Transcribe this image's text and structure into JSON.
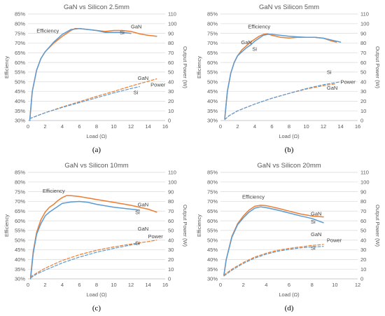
{
  "colors": {
    "gan": "#ED7D31",
    "si": "#5B9BD5",
    "grid": "#D9D9D9",
    "text": "#595959"
  },
  "chart_data": [
    {
      "type": "line",
      "panel_label": "(a)",
      "title": "GaN vs Silicon 2.5mm",
      "xlabel": "Load (Ω)",
      "ylabel": "Efficiency",
      "y2label": "Output Power (W)",
      "xlim": [
        0,
        16
      ],
      "x_ticks": [
        "0",
        "2",
        "4",
        "6",
        "8",
        "10",
        "12",
        "14",
        "16"
      ],
      "ylim": [
        0.3,
        0.85
      ],
      "y_ticks": [
        "30%",
        "35%",
        "40%",
        "45%",
        "50%",
        "55%",
        "60%",
        "65%",
        "70%",
        "75%",
        "80%",
        "85%"
      ],
      "y2lim": [
        0,
        110
      ],
      "y2_ticks": [
        "0",
        "10",
        "20",
        "30",
        "40",
        "50",
        "60",
        "70",
        "80",
        "90",
        "100",
        "110"
      ],
      "grid": true,
      "annotations": [
        {
          "text": "Efficiency",
          "x": 1.0,
          "y": 0.755,
          "axis": "y"
        },
        {
          "text": "GaN",
          "x": 12.0,
          "y": 0.775,
          "axis": "y"
        },
        {
          "text": "Si",
          "x": 10.7,
          "y": 0.745,
          "axis": "y"
        },
        {
          "text": "GaN",
          "x": 12.8,
          "y": 42,
          "axis": "y2"
        },
        {
          "text": "Power",
          "x": 14.3,
          "y": 35,
          "axis": "y2"
        },
        {
          "text": "Si",
          "x": 12.3,
          "y": 27,
          "axis": "y2"
        }
      ],
      "series": [
        {
          "key": "gan",
          "axis": "y",
          "dashed": false,
          "x": [
            0.2,
            0.5,
            1.0,
            1.5,
            2.0,
            3.0,
            4.0,
            5.0,
            5.5,
            6.0,
            7.0,
            8.0,
            9.0,
            10.0,
            11.0,
            12.0,
            13.0,
            14.0,
            15.0
          ],
          "y": [
            0.3,
            0.45,
            0.56,
            0.62,
            0.655,
            0.7,
            0.735,
            0.765,
            0.775,
            0.775,
            0.77,
            0.765,
            0.76,
            0.765,
            0.765,
            0.76,
            0.748,
            0.74,
            0.735
          ]
        },
        {
          "key": "si",
          "axis": "y",
          "dashed": false,
          "x": [
            0.2,
            0.5,
            1.0,
            1.5,
            2.0,
            3.0,
            4.0,
            5.0,
            6.0,
            7.0,
            8.0,
            9.0,
            10.0,
            11.0,
            12.0
          ],
          "y": [
            0.3,
            0.45,
            0.56,
            0.62,
            0.655,
            0.705,
            0.745,
            0.77,
            0.775,
            0.77,
            0.765,
            0.755,
            0.755,
            0.755,
            0.75
          ]
        },
        {
          "key": "gan",
          "axis": "y2",
          "dashed": true,
          "x": [
            0.2,
            2,
            4,
            6,
            8,
            10,
            12,
            14,
            15
          ],
          "y": [
            2,
            8,
            14,
            19.5,
            25,
            30,
            35.5,
            40.5,
            43
          ]
        },
        {
          "key": "si",
          "axis": "y2",
          "dashed": true,
          "x": [
            0.2,
            2,
            4,
            6,
            8,
            10,
            12,
            13
          ],
          "y": [
            2,
            8,
            13.5,
            18.5,
            23.5,
            28.5,
            33,
            35
          ]
        }
      ]
    },
    {
      "type": "line",
      "panel_label": "(b)",
      "title": "GaN vs Silicon 5mm",
      "xlabel": "Load (Ω)",
      "ylabel": "Efficiency",
      "y2label": "Output Power (W)",
      "xlim": [
        0,
        16
      ],
      "x_ticks": [
        "0",
        "2",
        "4",
        "6",
        "8",
        "10",
        "12",
        "14",
        "16"
      ],
      "ylim": [
        0.3,
        0.85
      ],
      "y_ticks": [
        "30%",
        "35%",
        "40%",
        "45%",
        "50%",
        "55%",
        "60%",
        "65%",
        "70%",
        "75%",
        "80%",
        "85%"
      ],
      "y2lim": [
        0,
        110
      ],
      "y2_ticks": [
        "0",
        "10",
        "20",
        "30",
        "40",
        "50",
        "60",
        "70",
        "80",
        "90",
        "100",
        "110"
      ],
      "grid": true,
      "annotations": [
        {
          "text": "Efficiency",
          "x": 3.2,
          "y": 0.775,
          "axis": "y"
        },
        {
          "text": "GaN",
          "x": 2.4,
          "y": 0.695,
          "axis": "y"
        },
        {
          "text": "Si",
          "x": 3.7,
          "y": 0.66,
          "axis": "y"
        },
        {
          "text": "Si",
          "x": 12.4,
          "y": 48,
          "axis": "y2"
        },
        {
          "text": "Power",
          "x": 14.0,
          "y": 38,
          "axis": "y2"
        },
        {
          "text": "GaN",
          "x": 12.4,
          "y": 32,
          "axis": "y2"
        }
      ],
      "series": [
        {
          "key": "gan",
          "axis": "y",
          "dashed": false,
          "x": [
            0.5,
            0.8,
            1.2,
            1.6,
            2.0,
            2.5,
            3.0,
            3.5,
            4.0,
            4.5,
            5.0,
            5.5,
            6.0,
            7.0,
            8.0,
            9.0,
            10.0,
            11.0,
            12.0,
            13.0,
            13.5
          ],
          "y": [
            0.31,
            0.45,
            0.545,
            0.6,
            0.635,
            0.665,
            0.685,
            0.705,
            0.72,
            0.735,
            0.745,
            0.748,
            0.74,
            0.73,
            0.726,
            0.73,
            0.73,
            0.73,
            0.725,
            0.71,
            0.705
          ]
        },
        {
          "key": "si",
          "axis": "y",
          "dashed": false,
          "x": [
            0.5,
            0.8,
            1.2,
            1.6,
            2.0,
            2.5,
            3.0,
            3.5,
            4.0,
            4.5,
            5.0,
            5.5,
            6.0,
            7.0,
            8.0,
            9.0,
            10.0,
            11.0,
            12.0,
            13.0,
            14.0
          ],
          "y": [
            0.31,
            0.45,
            0.545,
            0.6,
            0.635,
            0.655,
            0.675,
            0.69,
            0.71,
            0.725,
            0.74,
            0.745,
            0.745,
            0.74,
            0.735,
            0.732,
            0.73,
            0.73,
            0.725,
            0.715,
            0.705
          ]
        },
        {
          "key": "gan",
          "axis": "y2",
          "dashed": true,
          "x": [
            0.5,
            1,
            2,
            4,
            6,
            8,
            10,
            12,
            13.5
          ],
          "y": [
            1,
            5,
            10,
            17,
            23,
            28,
            32.5,
            36,
            38
          ]
        },
        {
          "key": "si",
          "axis": "y2",
          "dashed": true,
          "x": [
            0.5,
            1,
            2,
            4,
            6,
            8,
            10,
            12,
            14
          ],
          "y": [
            1,
            5,
            10,
            17,
            23,
            28,
            33,
            37,
            40
          ]
        }
      ]
    },
    {
      "type": "line",
      "panel_label": "(c)",
      "title": "GaN vs Silicon 10mm",
      "xlabel": "Load (Ω)",
      "ylabel": "Efficiency",
      "y2label": "Output Power (W)",
      "xlim": [
        0,
        16
      ],
      "x_ticks": [
        "0",
        "2",
        "4",
        "6",
        "8",
        "10",
        "12",
        "14",
        "16"
      ],
      "ylim": [
        0.3,
        0.85
      ],
      "y_ticks": [
        "30%",
        "35%",
        "40%",
        "45%",
        "50%",
        "55%",
        "60%",
        "65%",
        "70%",
        "75%",
        "80%",
        "85%"
      ],
      "y2lim": [
        0,
        110
      ],
      "y2_ticks": [
        "0",
        "10",
        "20",
        "30",
        "40",
        "50",
        "60",
        "70",
        "80",
        "90",
        "100",
        "110"
      ],
      "grid": true,
      "annotations": [
        {
          "text": "Efficiency",
          "x": 1.7,
          "y": 0.745,
          "axis": "y"
        },
        {
          "text": "GaN",
          "x": 12.8,
          "y": 0.675,
          "axis": "y"
        },
        {
          "text": "Si",
          "x": 12.5,
          "y": 0.635,
          "axis": "y"
        },
        {
          "text": "GaN",
          "x": 12.8,
          "y": 50,
          "axis": "y2"
        },
        {
          "text": "Power",
          "x": 14.0,
          "y": 42,
          "axis": "y2"
        },
        {
          "text": "Si",
          "x": 12.5,
          "y": 35,
          "axis": "y2"
        }
      ],
      "series": [
        {
          "key": "gan",
          "axis": "y",
          "dashed": false,
          "x": [
            0.3,
            0.6,
            1.0,
            1.5,
            2.0,
            2.5,
            3.0,
            3.5,
            4.0,
            4.5,
            5.0,
            6.0,
            8.0,
            10.0,
            12.0,
            14.0,
            15.0
          ],
          "y": [
            0.31,
            0.44,
            0.54,
            0.605,
            0.645,
            0.67,
            0.685,
            0.705,
            0.72,
            0.73,
            0.73,
            0.725,
            0.71,
            0.695,
            0.68,
            0.66,
            0.645
          ]
        },
        {
          "key": "si",
          "axis": "y",
          "dashed": false,
          "x": [
            0.3,
            0.6,
            1.0,
            1.5,
            2.0,
            2.5,
            3.0,
            3.5,
            4.0,
            5.0,
            6.0,
            7.0,
            8.0,
            10.0,
            12.0,
            13.0
          ],
          "y": [
            0.3,
            0.43,
            0.53,
            0.585,
            0.625,
            0.645,
            0.66,
            0.675,
            0.69,
            0.697,
            0.7,
            0.695,
            0.685,
            0.67,
            0.66,
            0.655
          ]
        },
        {
          "key": "gan",
          "axis": "y2",
          "dashed": true,
          "x": [
            0.3,
            1,
            2,
            4,
            6,
            8,
            10,
            12,
            14,
            15
          ],
          "y": [
            2,
            6,
            11,
            19,
            25,
            29.5,
            33,
            36,
            38.5,
            40
          ]
        },
        {
          "key": "si",
          "axis": "y2",
          "dashed": true,
          "x": [
            0.3,
            1,
            2,
            4,
            6,
            8,
            10,
            12,
            13
          ],
          "y": [
            1,
            5,
            9,
            16.5,
            22.5,
            27.5,
            31.5,
            35,
            36.5
          ]
        }
      ]
    },
    {
      "type": "line",
      "panel_label": "(d)",
      "title": "GaN vs Silicon 20mm",
      "xlabel": "Load (Ω)",
      "ylabel": "Efficiency",
      "y2label": "Output Power (W)",
      "xlim": [
        0,
        12
      ],
      "x_ticks": [
        "0",
        "2",
        "4",
        "6",
        "8",
        "10",
        "12"
      ],
      "ylim": [
        0.3,
        0.85
      ],
      "y_ticks": [
        "30%",
        "35%",
        "40%",
        "45%",
        "50%",
        "55%",
        "60%",
        "65%",
        "70%",
        "75%",
        "80%",
        "85%"
      ],
      "y2lim": [
        0,
        110
      ],
      "y2_ticks": [
        "0",
        "10",
        "20",
        "30",
        "40",
        "50",
        "60",
        "70",
        "80",
        "90",
        "100",
        "110"
      ],
      "grid": true,
      "annotations": [
        {
          "text": "Efficiency",
          "x": 1.9,
          "y": 0.715,
          "axis": "y"
        },
        {
          "text": "GaN",
          "x": 7.9,
          "y": 0.628,
          "axis": "y"
        },
        {
          "text": "Si",
          "x": 7.9,
          "y": 0.585,
          "axis": "y"
        },
        {
          "text": "GaN",
          "x": 7.9,
          "y": 44,
          "axis": "y2"
        },
        {
          "text": "Power",
          "x": 9.3,
          "y": 38,
          "axis": "y2"
        },
        {
          "text": "Si",
          "x": 7.9,
          "y": 30,
          "axis": "y2"
        }
      ],
      "series": [
        {
          "key": "gan",
          "axis": "y",
          "dashed": false,
          "x": [
            0.3,
            0.5,
            1.0,
            1.5,
            2.0,
            2.5,
            3.0,
            3.5,
            4.0,
            5.0,
            6.0,
            7.0,
            8.0,
            9.0
          ],
          "y": [
            0.32,
            0.4,
            0.52,
            0.585,
            0.625,
            0.655,
            0.675,
            0.68,
            0.678,
            0.665,
            0.65,
            0.635,
            0.625,
            0.62
          ]
        },
        {
          "key": "si",
          "axis": "y",
          "dashed": false,
          "x": [
            0.3,
            0.5,
            1.0,
            1.5,
            2.0,
            2.5,
            3.0,
            3.5,
            4.0,
            5.0,
            6.0,
            7.0,
            8.0,
            9.0
          ],
          "y": [
            0.32,
            0.4,
            0.515,
            0.58,
            0.615,
            0.645,
            0.665,
            0.672,
            0.668,
            0.655,
            0.64,
            0.625,
            0.612,
            0.59
          ]
        },
        {
          "key": "gan",
          "axis": "y2",
          "dashed": true,
          "x": [
            0.3,
            1,
            2,
            3,
            4,
            5,
            6,
            7,
            8,
            9
          ],
          "y": [
            4,
            10,
            17,
            22.5,
            26.5,
            29.5,
            31.5,
            33,
            34.5,
            35.5
          ]
        },
        {
          "key": "si",
          "axis": "y2",
          "dashed": true,
          "x": [
            0.3,
            1,
            2,
            3,
            4,
            5,
            6,
            7,
            8,
            9
          ],
          "y": [
            3,
            9,
            16,
            21.5,
            25.5,
            28.5,
            30.5,
            32,
            33,
            33.5
          ]
        }
      ]
    }
  ]
}
